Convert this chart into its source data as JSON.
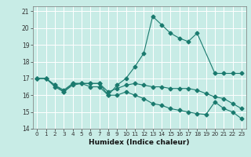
{
  "title": "",
  "xlabel": "Humidex (Indice chaleur)",
  "xlim": [
    -0.5,
    23.5
  ],
  "ylim": [
    14,
    21.3
  ],
  "yticks": [
    14,
    15,
    16,
    17,
    18,
    19,
    20,
    21
  ],
  "xticks": [
    0,
    1,
    2,
    3,
    4,
    5,
    6,
    7,
    8,
    9,
    10,
    11,
    12,
    13,
    14,
    15,
    16,
    17,
    18,
    19,
    20,
    21,
    22,
    23
  ],
  "bg_color": "#c8ece6",
  "line_color": "#1a7a6e",
  "grid_color": "#ffffff",
  "line1_x": [
    0,
    1,
    2,
    3,
    4,
    5,
    6,
    7,
    8,
    9,
    10,
    11,
    12,
    13,
    14,
    15,
    16,
    17,
    18,
    20,
    21,
    22,
    23
  ],
  "line1_y": [
    17.0,
    17.0,
    16.6,
    16.2,
    16.7,
    16.7,
    16.7,
    16.7,
    16.0,
    16.6,
    17.0,
    17.7,
    18.5,
    20.7,
    20.2,
    19.7,
    19.4,
    19.2,
    19.7,
    17.3,
    17.3,
    17.3,
    17.3
  ],
  "line2_x": [
    0,
    1,
    2,
    3,
    4,
    5,
    6,
    7,
    8,
    9,
    10,
    11,
    12,
    13,
    14,
    15,
    16,
    17,
    18,
    19,
    20,
    21,
    22,
    23
  ],
  "line2_y": [
    17.0,
    17.0,
    16.6,
    16.3,
    16.7,
    16.7,
    16.7,
    16.7,
    16.2,
    16.4,
    16.6,
    16.7,
    16.6,
    16.5,
    16.5,
    16.4,
    16.4,
    16.4,
    16.3,
    16.1,
    15.9,
    15.8,
    15.5,
    15.2
  ],
  "line3_x": [
    0,
    1,
    2,
    3,
    4,
    5,
    6,
    7,
    8,
    9,
    10,
    11,
    12,
    13,
    14,
    15,
    16,
    17,
    18,
    19,
    20,
    21,
    22,
    23
  ],
  "line3_y": [
    17.0,
    17.0,
    16.5,
    16.2,
    16.6,
    16.7,
    16.5,
    16.5,
    16.0,
    16.0,
    16.2,
    16.0,
    15.8,
    15.5,
    15.4,
    15.2,
    15.1,
    15.0,
    14.9,
    14.85,
    15.6,
    15.2,
    15.0,
    14.6
  ]
}
